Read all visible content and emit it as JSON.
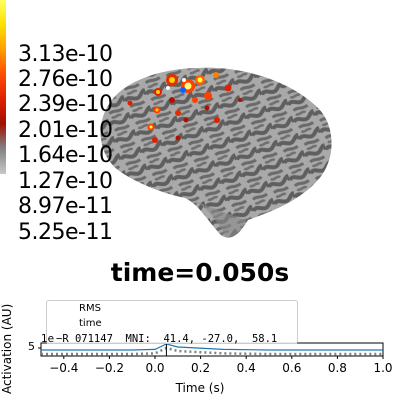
{
  "colorbar": {
    "labels": [
      "3.13e-10",
      "2.76e-10",
      "2.39e-10",
      "2.01e-10",
      "1.64e-10",
      "1.27e-10",
      "8.97e-11",
      "5.25e-11"
    ],
    "colors": [
      "#ffff40",
      "#ffd000",
      "#ff9000",
      "#ff4000",
      "#e02000",
      "#b01000",
      "#808080",
      "#c0c0c0"
    ]
  },
  "title": "time=0.050s",
  "plot": {
    "ylabel": "Activation (AU)",
    "xlabel": "Time (s)",
    "xticks": [
      "−0.4",
      "−0.2",
      "0.0",
      "0.2",
      "0.4",
      "0.6",
      "0.8",
      "1.0"
    ],
    "ytick": "5",
    "offset": "1e",
    "legend": [
      "RMS",
      "time"
    ],
    "vertex_text": "−R 071147  MNI:  41.4, -27.0,  58.1",
    "colors": {
      "rms": "#808080",
      "time": "#000000",
      "trace": "#1f77b4"
    }
  },
  "chart_data": {
    "type": "line",
    "xlabel": "Time (s)",
    "ylabel": "Activation (AU)",
    "xlim": [
      -0.5,
      1.0
    ],
    "series": [
      {
        "name": "RMS",
        "x": [
          -0.5,
          -0.3,
          -0.1,
          0.0,
          0.05,
          0.1,
          0.3,
          0.5,
          0.7,
          1.0
        ],
        "values": [
          0,
          0,
          0,
          0.1,
          1,
          0.5,
          0.1,
          0,
          0,
          0
        ]
      }
    ],
    "time_marker": 0.05
  }
}
